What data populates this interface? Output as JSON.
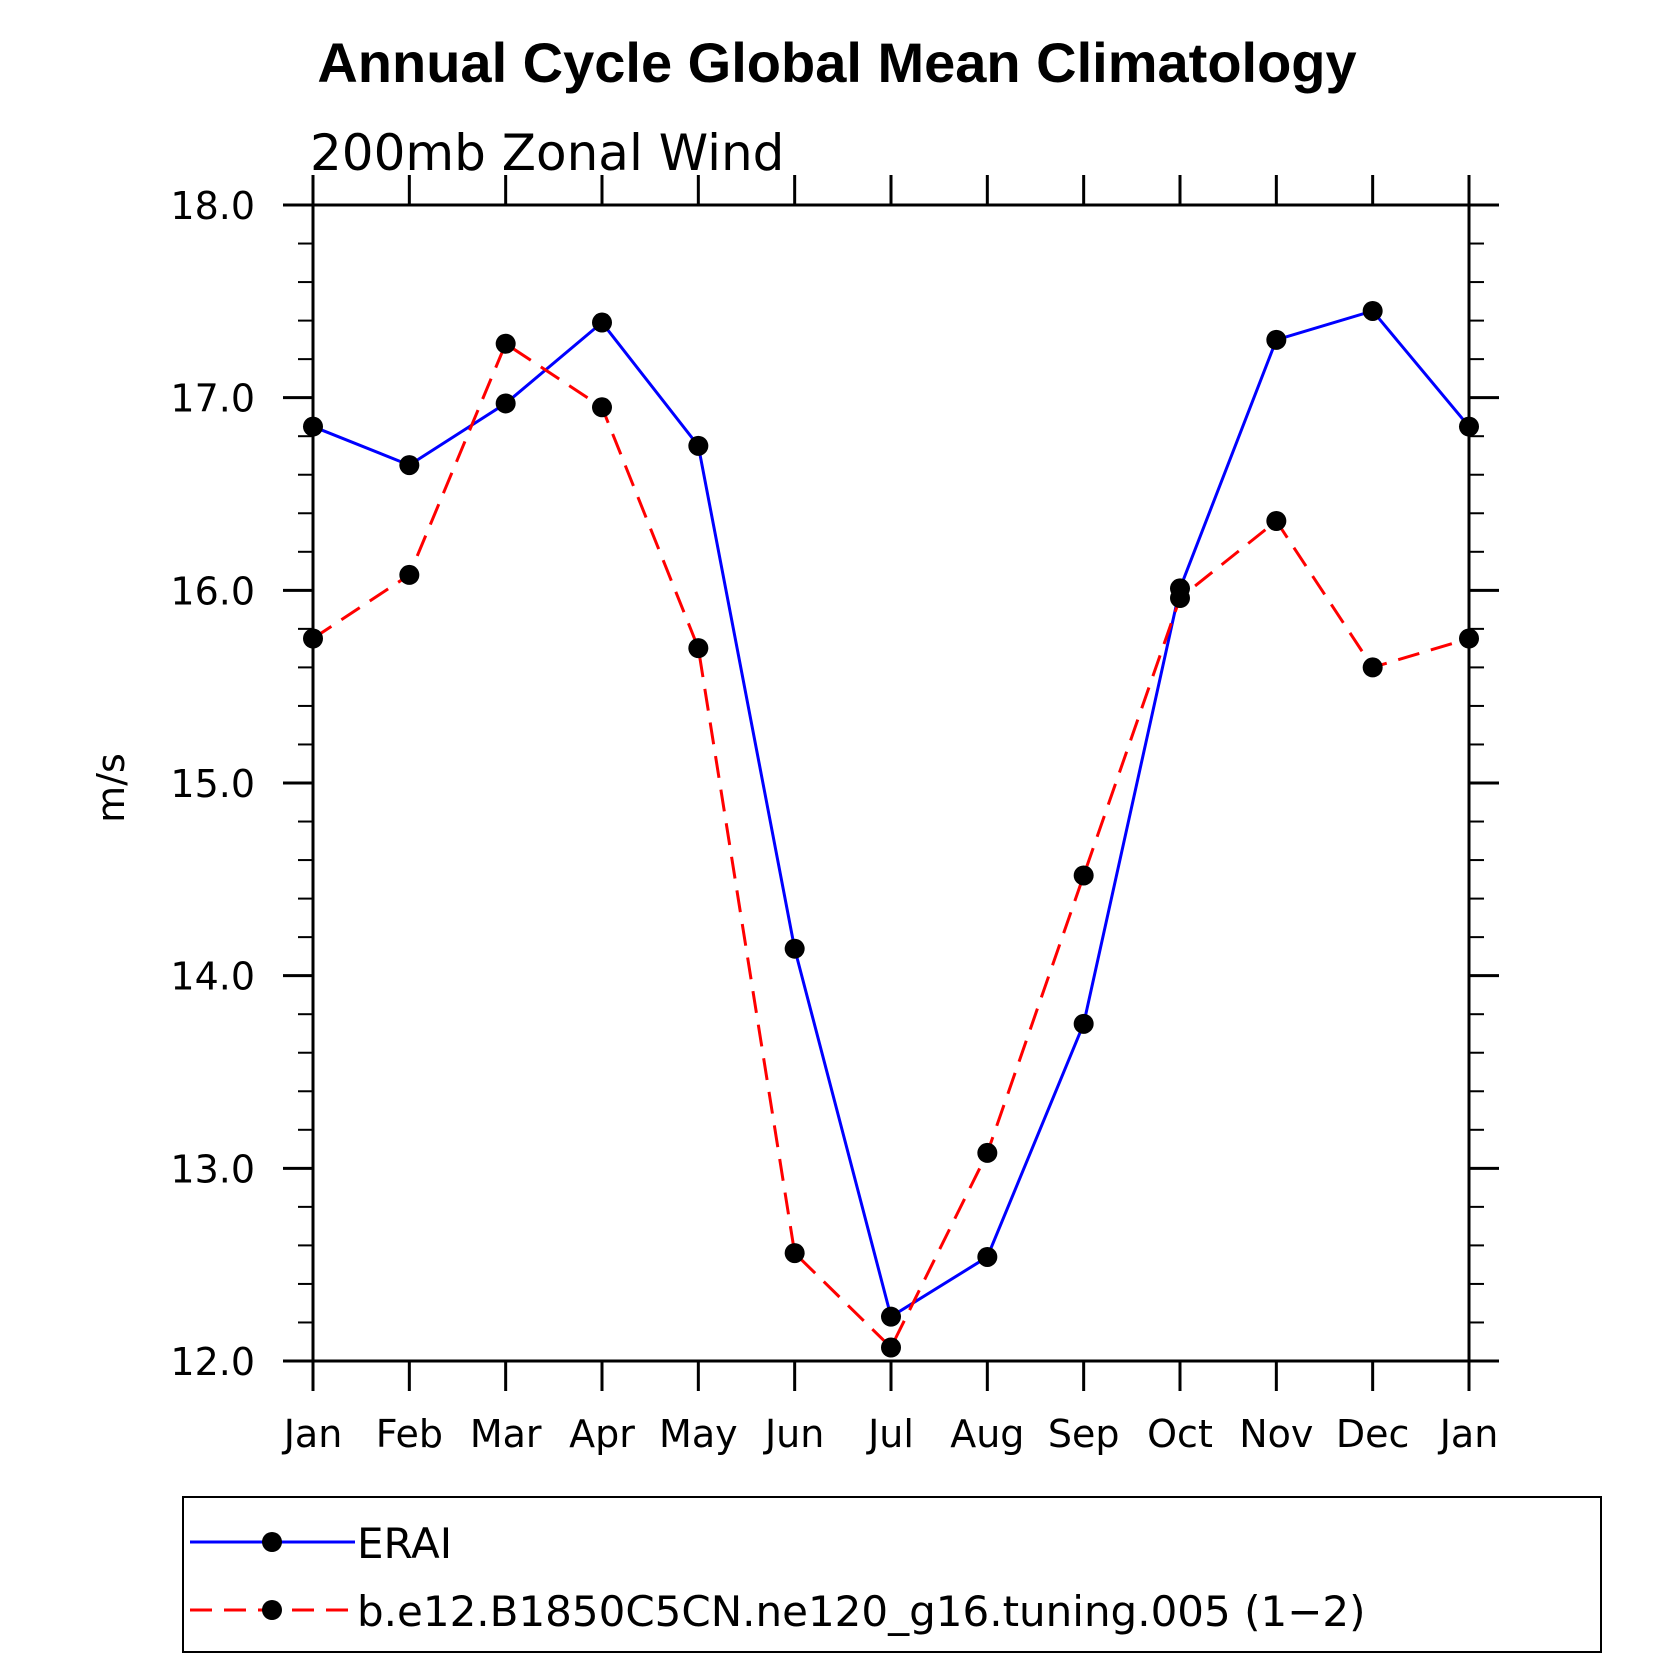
{
  "chart_data": {
    "type": "line",
    "title": "Annual Cycle Global Mean Climatology",
    "subtitle": "200mb Zonal Wind",
    "xlabel": "",
    "ylabel": "m/s",
    "categories": [
      "Jan",
      "Feb",
      "Mar",
      "Apr",
      "May",
      "Jun",
      "Jul",
      "Aug",
      "Sep",
      "Oct",
      "Nov",
      "Dec",
      "Jan"
    ],
    "ylim": [
      12.0,
      18.0
    ],
    "yticks": [
      "12.0",
      "13.0",
      "14.0",
      "15.0",
      "16.0",
      "17.0",
      "18.0"
    ],
    "grid": false,
    "legend_placement": "bottom",
    "series": [
      {
        "name": "ERAI",
        "color": "#0000ff",
        "style": "solid",
        "marker": "filled-circle",
        "values": [
          16.85,
          16.65,
          16.97,
          17.39,
          16.75,
          14.14,
          12.23,
          12.54,
          13.75,
          16.01,
          17.3,
          17.45,
          16.85
        ]
      },
      {
        "name": "b.e12.B1850C5CN.ne120_g16.tuning.005 (1−2)",
        "color": "#ff0000",
        "style": "dashed",
        "marker": "filled-circle",
        "values": [
          15.75,
          16.08,
          17.28,
          16.95,
          15.7,
          12.56,
          12.07,
          13.08,
          14.52,
          15.96,
          16.36,
          15.6,
          15.75
        ]
      }
    ]
  }
}
